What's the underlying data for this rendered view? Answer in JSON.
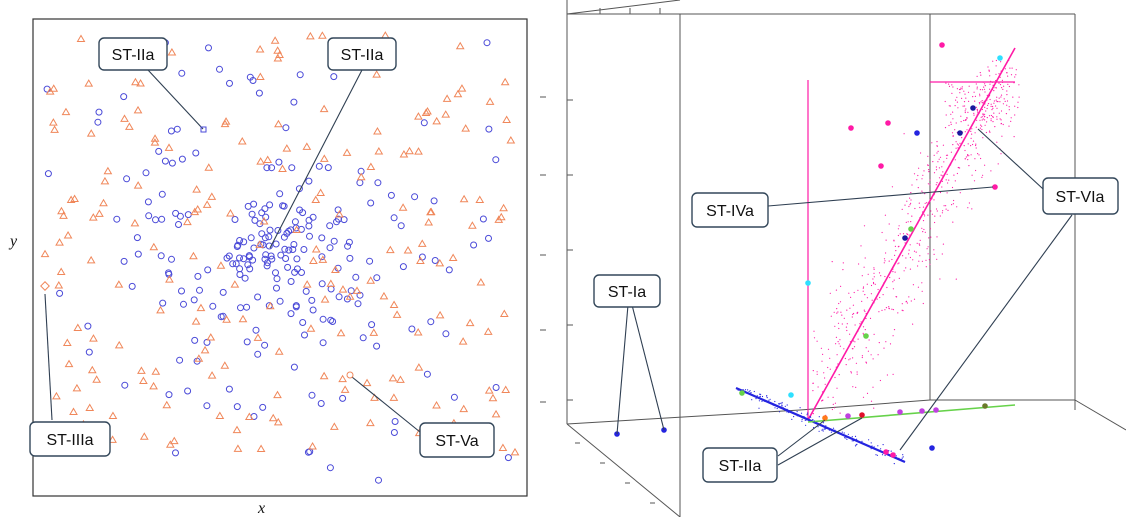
{
  "left_panel": {
    "axis_labels": {
      "x": "x",
      "y": "y"
    },
    "callouts": [
      {
        "id": "st-iia-left-a",
        "label": "ST-IIa"
      },
      {
        "id": "st-iia-left-b",
        "label": "ST-IIa"
      },
      {
        "id": "st-iiia",
        "label": "ST-IIIa"
      },
      {
        "id": "st-va",
        "label": "ST-Va"
      }
    ],
    "colors": {
      "circle": "#4a4ad8",
      "triangle": "#f0875a",
      "frame": "#333333"
    },
    "scatter_seed": 7,
    "circle_count": 240,
    "triangle_count": 210
  },
  "right_panel": {
    "callouts": [
      {
        "id": "st-ia",
        "label": "ST-Ia"
      },
      {
        "id": "st-iva",
        "label": "ST-IVa"
      },
      {
        "id": "st-via",
        "label": "ST-VIa"
      },
      {
        "id": "st-iia-right",
        "label": "ST-IIa"
      }
    ],
    "colors": {
      "magenta": "#ff1aa6",
      "blue": "#2424e0",
      "navy": "#1a1a9e",
      "cyan": "#2ee0ff",
      "green": "#66d24a",
      "orange": "#ff7a1a",
      "red": "#e0102a",
      "purple": "#c040e0",
      "olive": "#6a7a2a",
      "box": "#555555"
    }
  }
}
